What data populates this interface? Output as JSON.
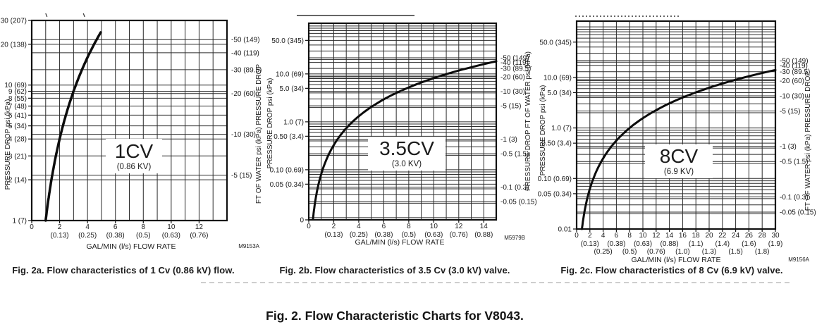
{
  "title": "Fig. 2. Flow Characteristic Charts for V8043.",
  "colors": {
    "ink": "#1b1b1b",
    "grid": "#2b2b2b",
    "background": "#ffffff"
  },
  "chart_data": [
    {
      "type": "line",
      "id": "fig-2a",
      "caption": "Fig. 2a. Flow characteristics of 1 Cv (0.86 kV) flow.",
      "inner_label": {
        "main": "1CV",
        "sub": "(0.86 KV)"
      },
      "drawing_number": "M9153A",
      "x_axis": {
        "label": "GAL/MIN (l/s) FLOW RATE",
        "min": 0,
        "max": 14,
        "grid_step": 1,
        "ticks": [
          {
            "v": 0,
            "gal": "0"
          },
          {
            "v": 2,
            "gal": "2",
            "ls": "(0.13)"
          },
          {
            "v": 4,
            "gal": "4",
            "ls": "(0.25)"
          },
          {
            "v": 6,
            "gal": "6",
            "ls": "(0.38)"
          },
          {
            "v": 8,
            "gal": "8",
            "ls": "(0.5)"
          },
          {
            "v": 10,
            "gal": "10",
            "ls": "(0.63)"
          },
          {
            "v": 12,
            "gal": "12",
            "ls": "(0.76)"
          }
        ]
      },
      "y_left_axis": {
        "label": "PRESSURE DROP psi (kPa)",
        "scale": "log",
        "ticks": [
          {
            "v": 30,
            "label": "30 (207)"
          },
          {
            "v": 20,
            "label": "20 (138)"
          },
          {
            "v": 10,
            "label": "10 (69)"
          },
          {
            "v": 9,
            "label": "9 (62)"
          },
          {
            "v": 8,
            "label": "8 (55)"
          },
          {
            "v": 7,
            "label": "7 (48)"
          },
          {
            "v": 6,
            "label": "6 (41)"
          },
          {
            "v": 5,
            "label": "5 (34)"
          },
          {
            "v": 4,
            "label": "4 (28)"
          },
          {
            "v": 3,
            "label": "3 (21)"
          },
          {
            "v": 2,
            "label": "2 (14)"
          },
          {
            "v": 1,
            "label": "1 (7)"
          }
        ]
      },
      "y_right_axis": {
        "label": "FT OF WATER psi (kPa) PRESSURE DROP",
        "scale": "log",
        "ticks": [
          {
            "ft": 50,
            "label": "-50 (149)"
          },
          {
            "ft": 40,
            "label": "-40 (119)"
          },
          {
            "ft": 30,
            "label": "-30 (89.5)"
          },
          {
            "ft": 20,
            "label": "-20 (60)"
          },
          {
            "ft": 10,
            "label": "-10 (30)"
          },
          {
            "ft": 5,
            "label": "-5 (15)"
          }
        ]
      },
      "series": [
        {
          "name": "1 Cv flow curve",
          "cv": 1.0,
          "kv": 0.86,
          "q_start": 1.0,
          "q_end": 4.95,
          "points_gpm_psi": [
            [
              1,
              1
            ],
            [
              2,
              4
            ],
            [
              3,
              9
            ],
            [
              4,
              16
            ],
            [
              4.95,
              24.5
            ]
          ]
        }
      ]
    },
    {
      "type": "line",
      "id": "fig-2b",
      "caption": "Fig. 2b. Flow characteristics of 3.5 Cv (3.0 kV) valve.",
      "inner_label": {
        "main": "3.5CV",
        "sub": "(3.0 KV)"
      },
      "drawing_number": "M5979B",
      "x_axis": {
        "label": "GAL/MIN (l/s) FLOW RATE",
        "min": 0,
        "max": 15,
        "grid_step": 1,
        "ticks": [
          {
            "v": 0,
            "gal": "0"
          },
          {
            "v": 2,
            "gal": "2",
            "ls": "(0.13)"
          },
          {
            "v": 4,
            "gal": "4",
            "ls": "(0.25)"
          },
          {
            "v": 6,
            "gal": "6",
            "ls": "(0.38)"
          },
          {
            "v": 8,
            "gal": "8",
            "ls": "(0.5)"
          },
          {
            "v": 10,
            "gal": "10",
            "ls": "(0.63)"
          },
          {
            "v": 12,
            "gal": "12",
            "ls": "(0.76)"
          },
          {
            "v": 14,
            "gal": "14",
            "ls": "(0.88)"
          }
        ]
      },
      "y_left_axis": {
        "label": "PRESSURE DROP psi (kPa)",
        "scale": "log",
        "ticks": [
          {
            "v": 50,
            "label": "50.0 (345)"
          },
          {
            "v": 10,
            "label": "10.0 (69)"
          },
          {
            "v": 5,
            "label": "5.0 (34)"
          },
          {
            "v": 1,
            "label": "1.0 (7)"
          },
          {
            "v": 0.5,
            "label": "0.50 (3.4)"
          },
          {
            "v": 0.1,
            "label": "0.10 (0.69)"
          },
          {
            "v": 0.05,
            "label": "0.05 (0.34)"
          },
          {
            "v": 0.009,
            "label": "0"
          }
        ]
      },
      "y_right_axis": {
        "label": "PRESSURE DROP FT OF WATER psi (kPa)",
        "scale": "log",
        "ticks": [
          {
            "ft": 50,
            "label": "-50 (149)"
          },
          {
            "ft": 40,
            "label": "-40 (119)"
          },
          {
            "ft": 30,
            "label": "-30 (89.5)"
          },
          {
            "ft": 20,
            "label": "-20 (60)"
          },
          {
            "ft": 10,
            "label": "-10 (30)"
          },
          {
            "ft": 5,
            "label": "-5 (15)"
          },
          {
            "ft": 1,
            "label": "-1 (3)"
          },
          {
            "ft": 0.5,
            "label": "-0.5 (1.5)"
          },
          {
            "ft": 0.1,
            "label": "-0.1 (0.3)"
          },
          {
            "ft": 0.05,
            "label": "-0.05 (0.15)"
          }
        ]
      },
      "series": [
        {
          "name": "3.5 Cv flow curve",
          "cv": 3.5,
          "kv": 3.0,
          "q_start": 0.34,
          "q_end": 15,
          "points_gpm_psi": [
            [
              0.34,
              0.009
            ],
            [
              2,
              0.33
            ],
            [
              4,
              1.3
            ],
            [
              6,
              2.9
            ],
            [
              8,
              5.2
            ],
            [
              10,
              8.2
            ],
            [
              12,
              11.8
            ],
            [
              15,
              18.4
            ]
          ]
        }
      ]
    },
    {
      "type": "line",
      "id": "fig-2c",
      "caption": "Fig. 2c. Flow characteristics of 8 Cv (6.9 kV) valve.",
      "inner_label": {
        "main": "8CV",
        "sub": "(6.9 KV)"
      },
      "drawing_number": "M9156A",
      "x_axis": {
        "label": "GAL/MIN (l/s) FLOW RATE",
        "min": 0,
        "max": 30,
        "grid_step": 2,
        "ticks": [
          {
            "v": 0,
            "gal": "0"
          },
          {
            "v": 2,
            "gal": "2",
            "ls": "(0.13)",
            "row": 1
          },
          {
            "v": 4,
            "gal": "4",
            "ls": "(0.25)",
            "row": 2
          },
          {
            "v": 6,
            "gal": "6",
            "ls": "(0.38)",
            "row": 1
          },
          {
            "v": 8,
            "gal": "8",
            "ls": "(0.5)",
            "row": 2
          },
          {
            "v": 10,
            "gal": "10",
            "ls": "(0.63)",
            "row": 1
          },
          {
            "v": 12,
            "gal": "12",
            "ls": "(0.76)",
            "row": 2
          },
          {
            "v": 14,
            "gal": "14",
            "ls": "(0.88)",
            "row": 1
          },
          {
            "v": 16,
            "gal": "16",
            "ls": "(1.0)",
            "row": 2
          },
          {
            "v": 18,
            "gal": "18",
            "ls": "(1.1)",
            "row": 1
          },
          {
            "v": 20,
            "gal": "20",
            "ls": "(1.3)",
            "row": 2
          },
          {
            "v": 22,
            "gal": "22",
            "ls": "(1.4)",
            "row": 1
          },
          {
            "v": 24,
            "gal": "24",
            "ls": "(1.5)",
            "row": 2
          },
          {
            "v": 26,
            "gal": "26",
            "ls": "(1.6)",
            "row": 1
          },
          {
            "v": 28,
            "gal": "28",
            "ls": "(1.8)",
            "row": 2
          },
          {
            "v": 30,
            "gal": "30",
            "ls": "(1.9)",
            "row": 1
          }
        ]
      },
      "y_left_axis": {
        "label": "PRESSURE DROP psi (kPa)",
        "scale": "log",
        "ticks": [
          {
            "v": 50,
            "label": "50.0 (345)"
          },
          {
            "v": 10,
            "label": "10.0 (69)"
          },
          {
            "v": 5,
            "label": "5.0 (34)"
          },
          {
            "v": 1,
            "label": "1.0 (7)"
          },
          {
            "v": 0.5,
            "label": "0.50 (3.4)"
          },
          {
            "v": 0.1,
            "label": "0.10 (0.69)"
          },
          {
            "v": 0.05,
            "label": "0.05 (0.34)"
          },
          {
            "v": 0.01,
            "label": "0.01"
          }
        ]
      },
      "y_right_axis": {
        "label": "FT OF WATER psi (kPa) PRESSURE DROP",
        "scale": "log",
        "ticks": [
          {
            "ft": 50,
            "label": "-50 (149)"
          },
          {
            "ft": 40,
            "label": "-40 (119)"
          },
          {
            "ft": 30,
            "label": "-30 (89.5)"
          },
          {
            "ft": 20,
            "label": "-20 (60)"
          },
          {
            "ft": 10,
            "label": "-10 (30)"
          },
          {
            "ft": 5,
            "label": "-5 (15)"
          },
          {
            "ft": 1,
            "label": "-1 (3)"
          },
          {
            "ft": 0.5,
            "label": "-0.5 (1.5)"
          },
          {
            "ft": 0.1,
            "label": "-0.1 (0.3)"
          },
          {
            "ft": 0.05,
            "label": "-0.05 (0.15)"
          }
        ]
      },
      "series": [
        {
          "name": "8 Cv flow curve",
          "cv": 8.0,
          "kv": 6.9,
          "q_start": 0.8,
          "q_end": 30,
          "points_gpm_psi": [
            [
              0.8,
              0.01
            ],
            [
              4,
              0.25
            ],
            [
              8,
              1.0
            ],
            [
              12,
              2.3
            ],
            [
              16,
              4.0
            ],
            [
              20,
              6.3
            ],
            [
              24,
              9.0
            ],
            [
              30,
              14.1
            ]
          ]
        }
      ]
    }
  ]
}
